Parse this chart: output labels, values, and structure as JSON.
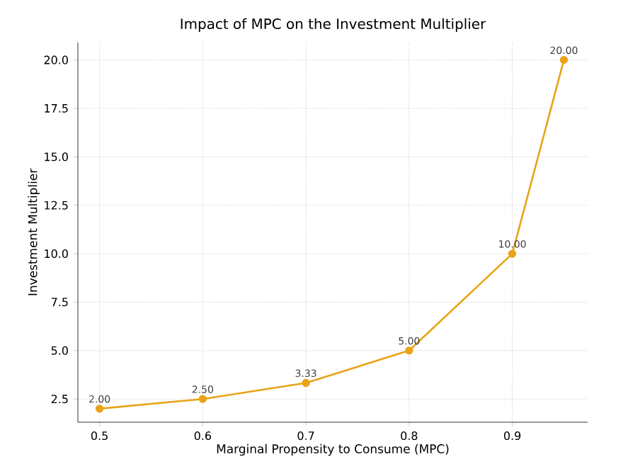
{
  "chart_data": {
    "type": "line",
    "title": "Impact of MPC on the Investment Multiplier",
    "xlabel": "Marginal Propensity to Consume (MPC)",
    "ylabel": "Investment Multiplier",
    "x": [
      0.5,
      0.6,
      0.7,
      0.8,
      0.9,
      0.95
    ],
    "values": [
      2,
      2.5,
      3.33,
      5,
      10,
      20
    ],
    "value_labels": [
      "2.00",
      "2.50",
      "3.33",
      "5.00",
      "10.00",
      "20.00"
    ],
    "color": "#e8a317",
    "marker": "circle",
    "line_style": "solid",
    "grid": true,
    "xlim": [
      0.479,
      0.973
    ],
    "xticks": [
      0.5,
      0.6,
      0.7,
      0.8,
      0.9
    ],
    "ylim": [
      1.3,
      20.9
    ],
    "yticks": [
      {
        "value": 2.5,
        "label": "2.5"
      },
      {
        "value": 5,
        "label": "5.0"
      },
      {
        "value": 7.5,
        "label": "7.5"
      },
      {
        "value": 10,
        "label": "10.0"
      },
      {
        "value": 12.5,
        "label": "12.5"
      },
      {
        "value": 15,
        "label": "15.0"
      },
      {
        "value": 17.5,
        "label": "17.5"
      },
      {
        "value": 20,
        "label": "20.0"
      }
    ]
  }
}
